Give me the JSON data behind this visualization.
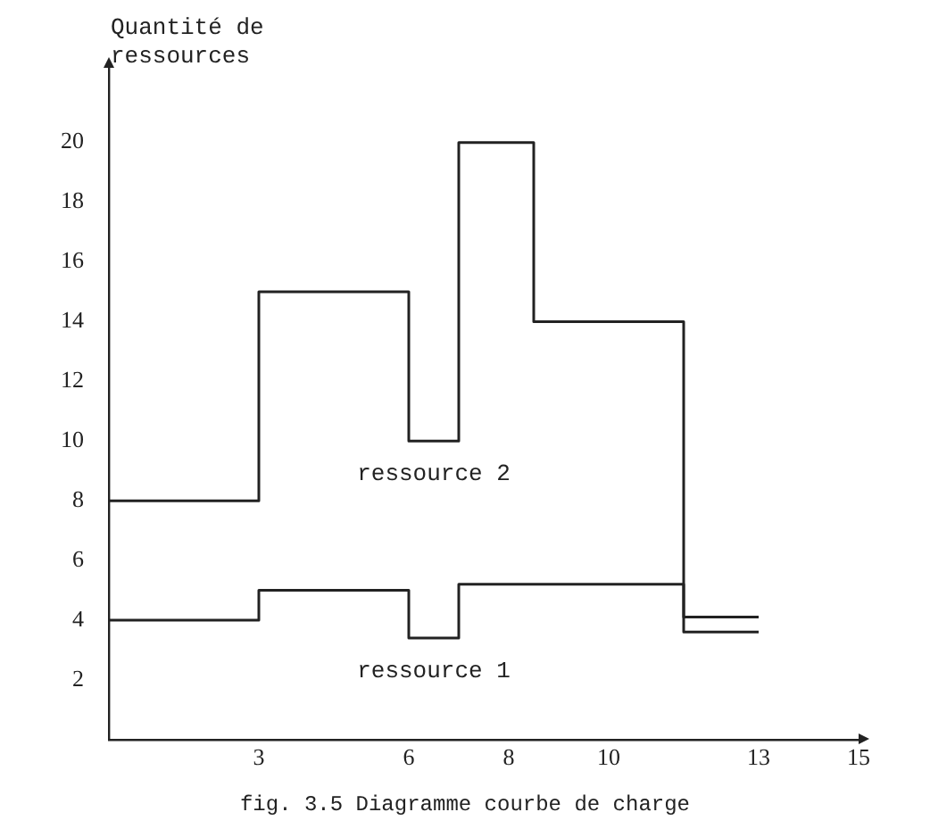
{
  "chart_data": {
    "type": "step",
    "ylabel": "Quantité de\nressources",
    "x": [
      0,
      3,
      6,
      7,
      8.5,
      11.5,
      13
    ],
    "series": [
      {
        "name": "ressource 2",
        "color": "#222222",
        "values": [
          8,
          15,
          10,
          20,
          14,
          4.1,
          4.1
        ]
      },
      {
        "name": "ressource 1",
        "color": "#222222",
        "values": [
          4,
          5,
          3.4,
          5.2,
          5.2,
          3.6,
          3.6
        ]
      }
    ],
    "xlim": [
      0,
      15
    ],
    "xticks": [
      3,
      6,
      8,
      10,
      13,
      15
    ],
    "ylim": [
      0,
      22.5
    ],
    "yticks": [
      2,
      4,
      6,
      8,
      10,
      12,
      14,
      16,
      18,
      20
    ],
    "grid": false,
    "legend": false,
    "marker": "none",
    "line_style": "solid",
    "annotations": [
      "fig. 3.5 Diagramme courbe de charge"
    ]
  }
}
